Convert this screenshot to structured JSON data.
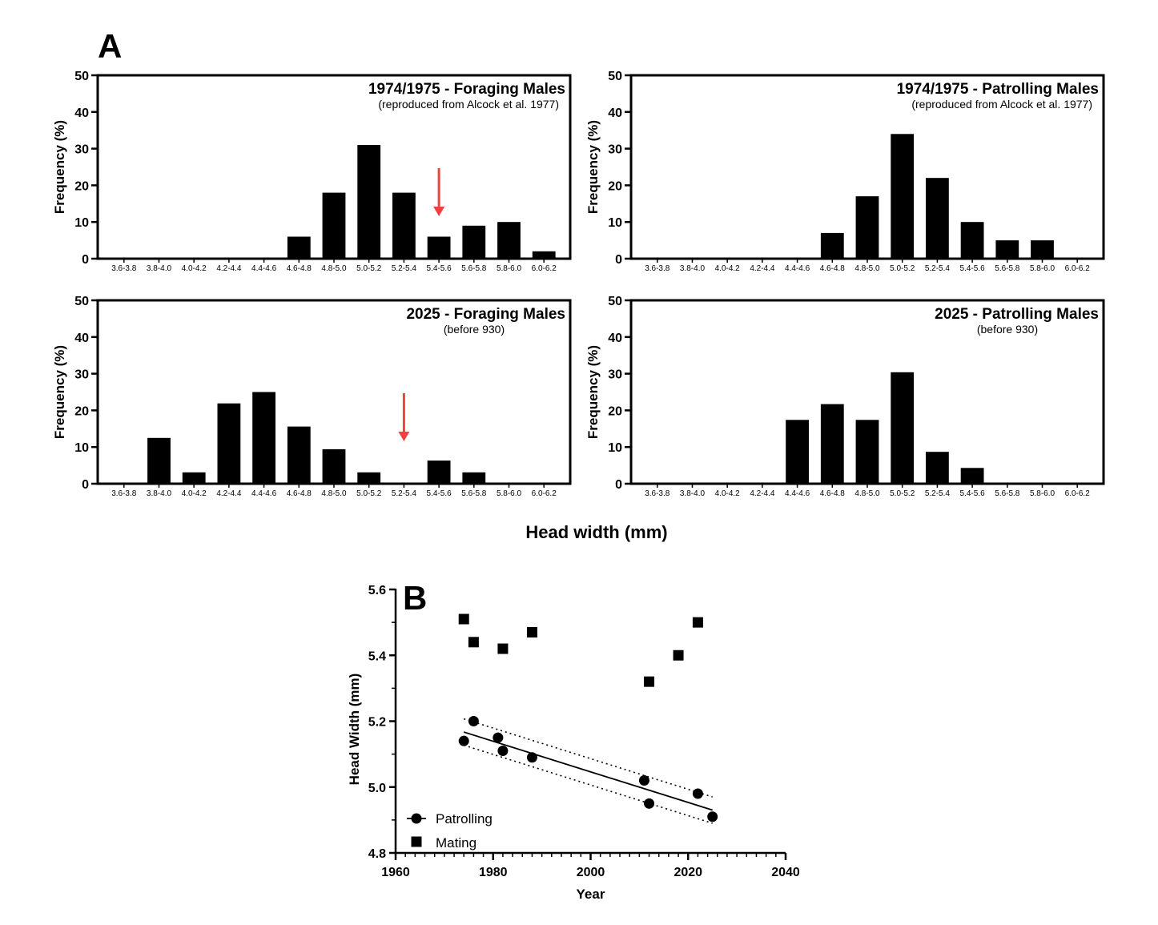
{
  "figure": {
    "panel_a_letter": "A",
    "panel_b_letter": "B",
    "shared_xlabel": "Head width (mm)"
  },
  "chart_data": [
    {
      "type": "bar",
      "id": "a1",
      "title": "1974/1975 - Foraging Males",
      "subtitle": "(reproduced from Alcock et al. 1977)",
      "ylabel": "Frequency (%)",
      "ylim": [
        0,
        50
      ],
      "yticks": [
        0,
        10,
        20,
        30,
        40,
        50
      ],
      "categories": [
        "3.6-3.8",
        "3.8-4.0",
        "4.0-4.2",
        "4.2-4.4",
        "4.4-4.6",
        "4.6-4.8",
        "4.8-5.0",
        "5.0-5.2",
        "5.2-5.4",
        "5.4-5.6",
        "5.6-5.8",
        "5.8-6.0",
        "6.0-6.2"
      ],
      "values": [
        0,
        0,
        0,
        0,
        0,
        6,
        18,
        31,
        18,
        6,
        9,
        10,
        2
      ],
      "arrow_category": "5.4-5.6",
      "arrow_color": "#f04040"
    },
    {
      "type": "bar",
      "id": "a2",
      "title": "1974/1975 - Patrolling Males",
      "subtitle": "(reproduced from Alcock et al. 1977)",
      "ylabel": "Frequency (%)",
      "ylim": [
        0,
        50
      ],
      "yticks": [
        0,
        10,
        20,
        30,
        40,
        50
      ],
      "categories": [
        "3.6-3.8",
        "3.8-4.0",
        "4.0-4.2",
        "4.2-4.4",
        "4.4-4.6",
        "4.6-4.8",
        "4.8-5.0",
        "5.0-5.2",
        "5.2-5.4",
        "5.4-5.6",
        "5.6-5.8",
        "5.8-6.0",
        "6.0-6.2"
      ],
      "values": [
        0,
        0,
        0,
        0,
        0,
        7,
        17,
        34,
        22,
        10,
        5,
        5,
        0
      ]
    },
    {
      "type": "bar",
      "id": "a3",
      "title": "2025 - Foraging Males",
      "subtitle": "(before 930)",
      "ylabel": "Frequency (%)",
      "ylim": [
        0,
        50
      ],
      "yticks": [
        0,
        10,
        20,
        30,
        40,
        50
      ],
      "categories": [
        "3.6-3.8",
        "3.8-4.0",
        "4.0-4.2",
        "4.2-4.4",
        "4.4-4.6",
        "4.6-4.8",
        "4.8-5.0",
        "5.0-5.2",
        "5.2-5.4",
        "5.4-5.6",
        "5.6-5.8",
        "5.8-6.0",
        "6.0-6.2"
      ],
      "values": [
        0,
        12.5,
        3.1,
        21.9,
        25,
        15.6,
        9.4,
        3.1,
        0,
        6.3,
        3.1,
        0,
        0
      ],
      "arrow_category": "5.2-5.4",
      "arrow_color": "#f04040"
    },
    {
      "type": "bar",
      "id": "a4",
      "title": "2025 - Patrolling Males",
      "subtitle": "(before 930)",
      "ylabel": "Frequency (%)",
      "ylim": [
        0,
        50
      ],
      "yticks": [
        0,
        10,
        20,
        30,
        40,
        50
      ],
      "categories": [
        "3.6-3.8",
        "3.8-4.0",
        "4.0-4.2",
        "4.2-4.4",
        "4.4-4.6",
        "4.6-4.8",
        "4.8-5.0",
        "5.0-5.2",
        "5.2-5.4",
        "5.4-5.6",
        "5.6-5.8",
        "5.8-6.0",
        "6.0-6.2"
      ],
      "values": [
        0,
        0,
        0,
        0,
        17.4,
        21.7,
        17.4,
        30.4,
        8.7,
        4.3,
        0,
        0,
        0
      ]
    },
    {
      "type": "scatter",
      "id": "b",
      "xlabel": "Year",
      "ylabel": "Head Width (mm)",
      "xlim": [
        1960,
        2040
      ],
      "ylim": [
        4.8,
        5.6
      ],
      "xticks": [
        1960,
        1980,
        2000,
        2020,
        2040
      ],
      "yticks": [
        4.8,
        5.0,
        5.2,
        5.4,
        5.6
      ],
      "series": [
        {
          "name": "Patrolling",
          "marker": "circle",
          "points": [
            [
              1974,
              5.14
            ],
            [
              1976,
              5.2
            ],
            [
              1981,
              5.15
            ],
            [
              1982,
              5.11
            ],
            [
              1988,
              5.09
            ],
            [
              2011,
              5.02
            ],
            [
              2012,
              4.95
            ],
            [
              2022,
              4.98
            ],
            [
              2025,
              4.91
            ]
          ],
          "fit": {
            "x": [
              1974,
              2025
            ],
            "y": [
              5.167,
              4.93
            ]
          },
          "ci_upper": {
            "x": [
              1974,
              2025
            ],
            "y": [
              5.207,
              4.97
            ]
          },
          "ci_lower": {
            "x": [
              1974,
              2025
            ],
            "y": [
              5.127,
              4.89
            ]
          }
        },
        {
          "name": "Mating",
          "marker": "square",
          "points": [
            [
              1974,
              5.51
            ],
            [
              1976,
              5.44
            ],
            [
              1982,
              5.42
            ],
            [
              1988,
              5.47
            ],
            [
              2012,
              5.32
            ],
            [
              2018,
              5.4
            ],
            [
              2022,
              5.5
            ]
          ]
        }
      ]
    }
  ]
}
